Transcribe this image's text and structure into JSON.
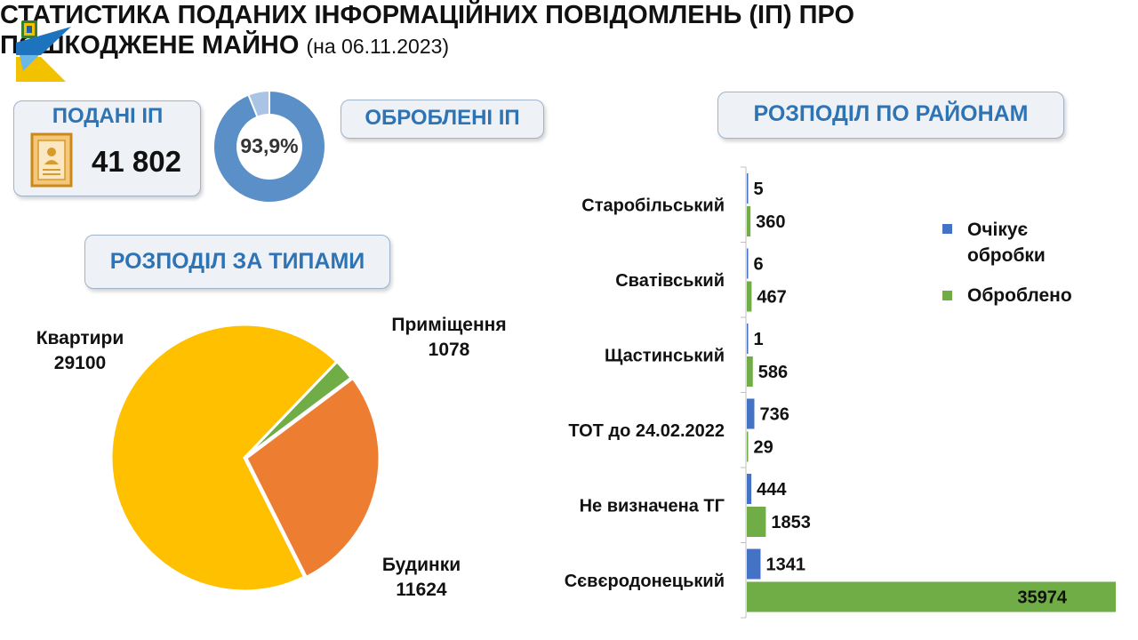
{
  "header": {
    "title_line1": "СТАТИСТИКА ПОДАНИХ ІНФОРМАЦІЙНИХ ПОВІДОМЛЕНЬ (ІП) ПРО",
    "title_line2": "ПОШКОДЖЕНЕ МАЙНО",
    "date": "(на 06.11.2023)"
  },
  "submitted": {
    "label": "ПОДАНІ ІП",
    "value": "41 802"
  },
  "processed": {
    "label": "ОБРОБЛЕНІ ІП",
    "percent_text": "93,9%",
    "percent": 93.9
  },
  "types_heading": "РОЗПОДІЛ ЗА ТИПАМИ",
  "districts_heading": "РОЗПОДІЛ ПО РАЙОНАМ",
  "colors": {
    "accent_blue": "#2e74b5",
    "bar_blue": "#4472c4",
    "bar_green": "#70ad47",
    "pie_apartments": "#ffc000",
    "pie_houses": "#ed7d31",
    "pie_premises": "#70ad47",
    "donut_main": "#5b8fc7",
    "donut_rest": "#a9c4e4"
  },
  "chart_data": [
    {
      "type": "pie",
      "categories": [
        "Квартири",
        "Будинки",
        "Приміщення"
      ],
      "values": [
        29100,
        11624,
        1078
      ]
    },
    {
      "type": "bar",
      "orientation": "horizontal",
      "categories": [
        "Старобільський",
        "Сватівський",
        "Щастинський",
        "ТОТ до 24.02.2022",
        "Не визначена ТГ",
        "Сєвєродонецький"
      ],
      "series": [
        {
          "name": "Очікує обробки",
          "values": [
            5,
            6,
            1,
            736,
            444,
            1341
          ]
        },
        {
          "name": "Оброблено",
          "values": [
            360,
            467,
            586,
            29,
            1853,
            35974
          ]
        }
      ],
      "legend": "right",
      "grid": false
    }
  ]
}
